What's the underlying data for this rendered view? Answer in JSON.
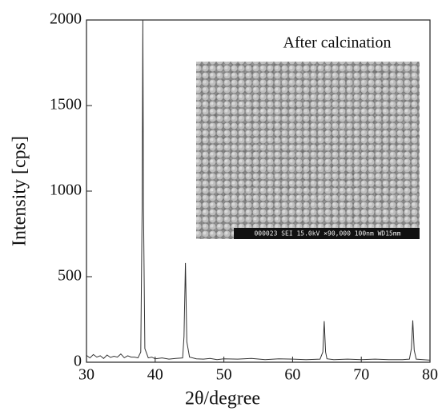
{
  "chart_data": {
    "type": "line",
    "annotation": "After calcination",
    "inset_caption": "000023 SEI 15.0kV ×90,000 100nm WD15mm",
    "xlabel": "2θ/degree",
    "ylabel": "Intensity [cps]",
    "x": [
      30,
      30.5,
      31,
      31.5,
      32,
      32.5,
      33,
      33.5,
      34,
      34.5,
      35,
      35.5,
      36,
      36.5,
      37,
      37.5,
      37.9,
      38.1,
      38.2,
      38.3,
      38.5,
      39,
      39.5,
      40,
      41,
      42,
      43,
      44,
      44.2,
      44.4,
      44.6,
      45,
      46,
      47,
      48,
      49,
      50,
      52,
      54,
      56,
      58,
      60,
      62,
      64,
      64.4,
      64.6,
      64.8,
      65,
      66,
      68,
      70,
      72,
      74,
      76,
      77,
      77.3,
      77.5,
      77.7,
      78,
      79,
      80
    ],
    "series": [
      {
        "color": "#333333",
        "values": [
          40,
          25,
          45,
          30,
          38,
          22,
          42,
          28,
          35,
          30,
          48,
          26,
          38,
          30,
          30,
          25,
          60,
          900,
          2000,
          900,
          80,
          25,
          30,
          20,
          25,
          18,
          22,
          25,
          150,
          580,
          120,
          30,
          20,
          18,
          22,
          15,
          20,
          18,
          22,
          15,
          20,
          18,
          15,
          18,
          60,
          240,
          60,
          20,
          15,
          18,
          15,
          18,
          15,
          15,
          18,
          80,
          245,
          70,
          18,
          15,
          12
        ]
      }
    ],
    "xlim": [
      30,
      80
    ],
    "ylim": [
      0,
      2000
    ],
    "xticks": [
      30,
      40,
      50,
      60,
      70,
      80
    ],
    "yticks": [
      0,
      500,
      1000,
      1500,
      2000
    ]
  }
}
